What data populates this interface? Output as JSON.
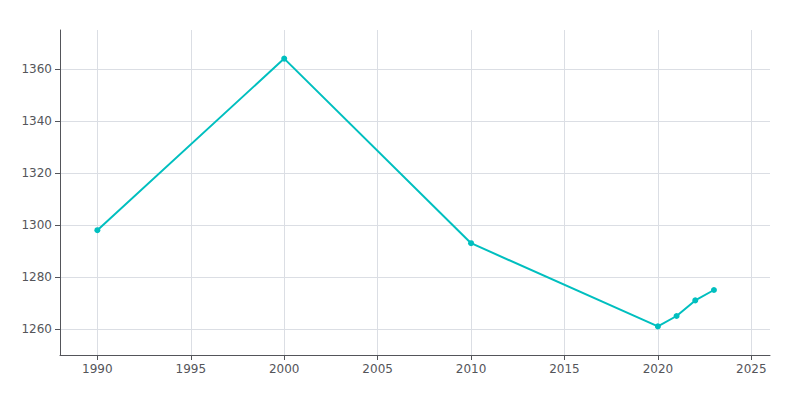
{
  "chart_data": {
    "type": "line",
    "x": [
      1990,
      2000,
      2010,
      2020,
      2021,
      2022,
      2023
    ],
    "values": [
      1298,
      1364,
      1293,
      1261,
      1265,
      1271,
      1275
    ],
    "color": "#00BFBF",
    "marker": "circle",
    "xlim": [
      1988,
      2026
    ],
    "xticks": [
      1990,
      1995,
      2000,
      2005,
      2010,
      2015,
      2020,
      2025
    ],
    "ylim": [
      1250,
      1375
    ],
    "yticks": [
      1260,
      1280,
      1300,
      1320,
      1340,
      1360
    ],
    "grid": true
  }
}
